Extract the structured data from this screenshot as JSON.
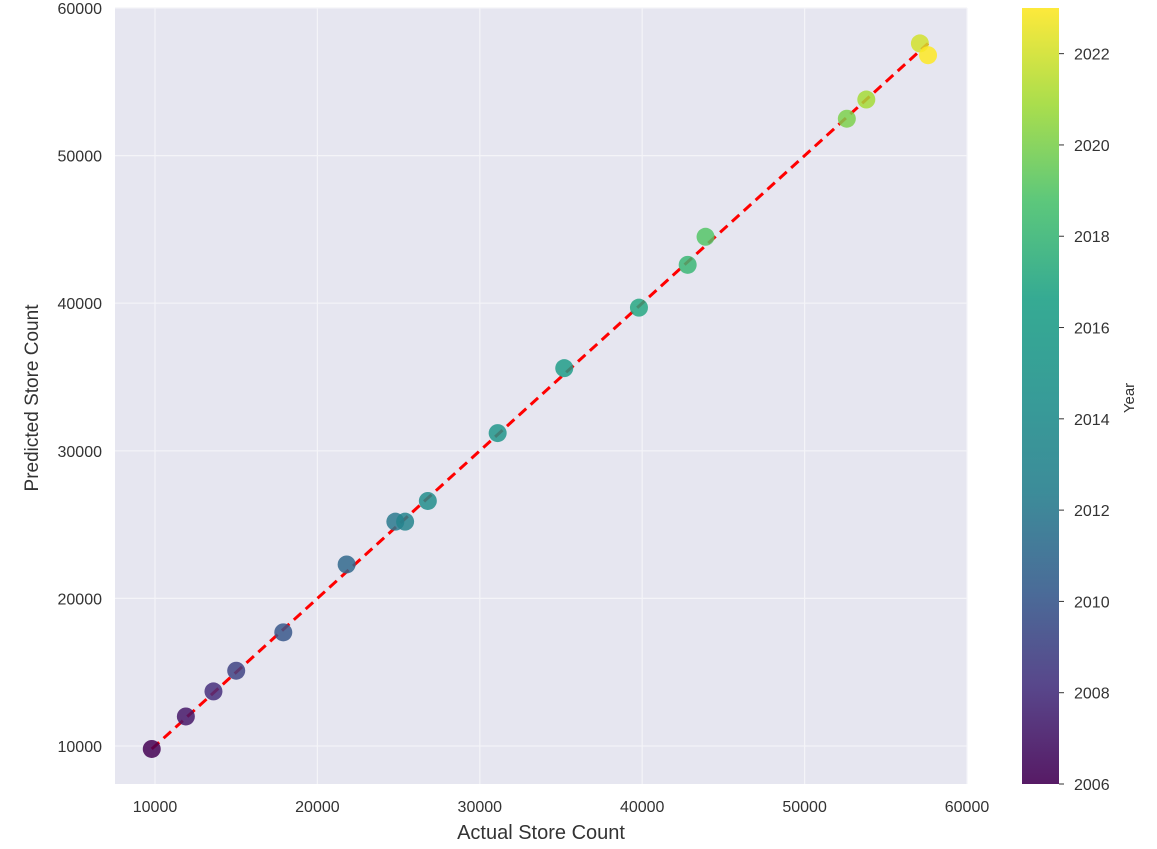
{
  "chart_data": {
    "type": "scatter",
    "xlabel": "Actual Store Count",
    "ylabel": "Predicted Store Count",
    "xlim": [
      7500,
      60000
    ],
    "ylim": [
      7500,
      60000
    ],
    "x_ticks": [
      10000,
      20000,
      30000,
      40000,
      50000,
      60000
    ],
    "y_ticks": [
      10000,
      20000,
      30000,
      40000,
      50000,
      60000
    ],
    "x_tick_labels": [
      "10000",
      "20000",
      "30000",
      "40000",
      "50000",
      "60000"
    ],
    "y_tick_labels": [
      "10000",
      "20000",
      "30000",
      "40000",
      "50000",
      "60000"
    ],
    "grid": true,
    "background": "#e6e6f0",
    "points": [
      {
        "x": 9800,
        "y": 9800,
        "year": 2006
      },
      {
        "x": 11900,
        "y": 12000,
        "year": 2007
      },
      {
        "x": 13600,
        "y": 13700,
        "year": 2008
      },
      {
        "x": 15000,
        "y": 15100,
        "year": 2009
      },
      {
        "x": 17900,
        "y": 17700,
        "year": 2010
      },
      {
        "x": 21800,
        "y": 22300,
        "year": 2011
      },
      {
        "x": 24800,
        "y": 25200,
        "year": 2012
      },
      {
        "x": 25400,
        "y": 25200,
        "year": 2013
      },
      {
        "x": 26800,
        "y": 26600,
        "year": 2014
      },
      {
        "x": 31100,
        "y": 31200,
        "year": 2015
      },
      {
        "x": 35200,
        "y": 35600,
        "year": 2016
      },
      {
        "x": 39800,
        "y": 39700,
        "year": 2017
      },
      {
        "x": 42800,
        "y": 42600,
        "year": 2018
      },
      {
        "x": 43900,
        "y": 44500,
        "year": 2019
      },
      {
        "x": 52600,
        "y": 52500,
        "year": 2020
      },
      {
        "x": 53800,
        "y": 53800,
        "year": 2021
      },
      {
        "x": 57100,
        "y": 57600,
        "year": 2022
      },
      {
        "x": 57600,
        "y": 56800,
        "year": 2023
      }
    ],
    "reference_line": {
      "from": [
        9800,
        9800
      ],
      "to": [
        57600,
        57600
      ],
      "color": "#ff0000",
      "style": "dashed"
    },
    "colorbar": {
      "label": "Year",
      "range": [
        2006,
        2023
      ],
      "ticks": [
        2006,
        2008,
        2010,
        2012,
        2014,
        2016,
        2018,
        2020,
        2022
      ],
      "tick_labels": [
        "2006",
        "2008",
        "2010",
        "2012",
        "2014",
        "2016",
        "2018",
        "2020",
        "2022"
      ],
      "colormap": "viridis"
    }
  }
}
